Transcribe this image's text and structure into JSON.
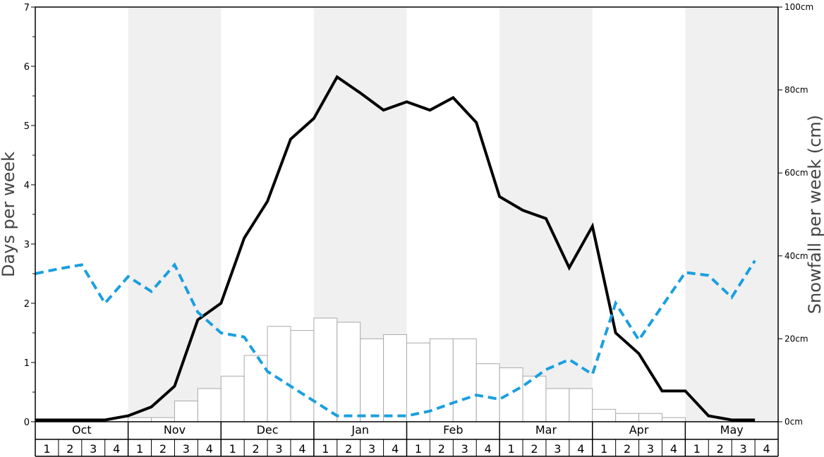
{
  "chart_data": {
    "type": "bar+line",
    "months": [
      "Oct",
      "Nov",
      "Dec",
      "Jan",
      "Feb",
      "Mar",
      "Apr",
      "May"
    ],
    "week_labels": [
      "1",
      "2",
      "3",
      "4"
    ],
    "left_axis": {
      "label": "Days per week",
      "ylim": [
        0,
        7
      ],
      "ticks": [
        "0",
        "1",
        "2",
        "3",
        "4",
        "5",
        "6",
        "7"
      ]
    },
    "right_axis": {
      "label": "Snowfall per week (cm)",
      "ylim": [
        0,
        100
      ],
      "tick_values": [
        0,
        20,
        40,
        60,
        80,
        100
      ],
      "ticks": [
        "0cm",
        "20cm",
        "40cm",
        "60cm",
        "80cm",
        "100cm"
      ]
    },
    "shaded_months": [
      "Nov",
      "Jan",
      "Mar",
      "May"
    ],
    "snowfall_bars_cm": [
      0,
      0,
      0,
      0,
      1,
      1,
      5,
      8,
      11,
      16,
      23,
      22,
      25,
      24,
      20,
      21,
      19,
      20,
      20,
      14,
      13,
      11,
      8,
      8,
      3,
      2,
      2,
      1,
      0,
      0,
      0,
      0
    ],
    "series": [
      {
        "name": "",
        "style": "solid",
        "color": "#000000",
        "axis": "left",
        "values": [
          0.03,
          0.03,
          0.03,
          0.03,
          0.1,
          0.25,
          0.6,
          1.72,
          2.0,
          3.1,
          3.72,
          4.77,
          5.12,
          5.82,
          5.55,
          5.26,
          5.4,
          5.26,
          5.47,
          5.05,
          3.8,
          3.57,
          3.43,
          2.6,
          3.3,
          1.5,
          1.15,
          0.52,
          0.52,
          0.1,
          0.03,
          0.03
        ]
      },
      {
        "name": "",
        "style": "dashed",
        "color": "#1a9fe0",
        "axis": "left",
        "values": [
          2.5,
          2.58,
          2.65,
          2.0,
          2.45,
          2.2,
          2.65,
          1.85,
          1.5,
          1.43,
          0.85,
          0.6,
          0.35,
          0.1,
          0.1,
          0.1,
          0.1,
          0.18,
          0.32,
          0.45,
          0.38,
          0.6,
          0.88,
          1.05,
          0.8,
          2.0,
          1.38,
          1.95,
          2.52,
          2.47,
          2.1,
          2.72
        ]
      }
    ],
    "colors": {
      "shade": "#f0f0f0",
      "bar_fill": "#ffffff",
      "bar_stroke": "#aaaaaa",
      "snow_days_line": "#000000",
      "dashed_line": "#1a9fe0"
    }
  }
}
